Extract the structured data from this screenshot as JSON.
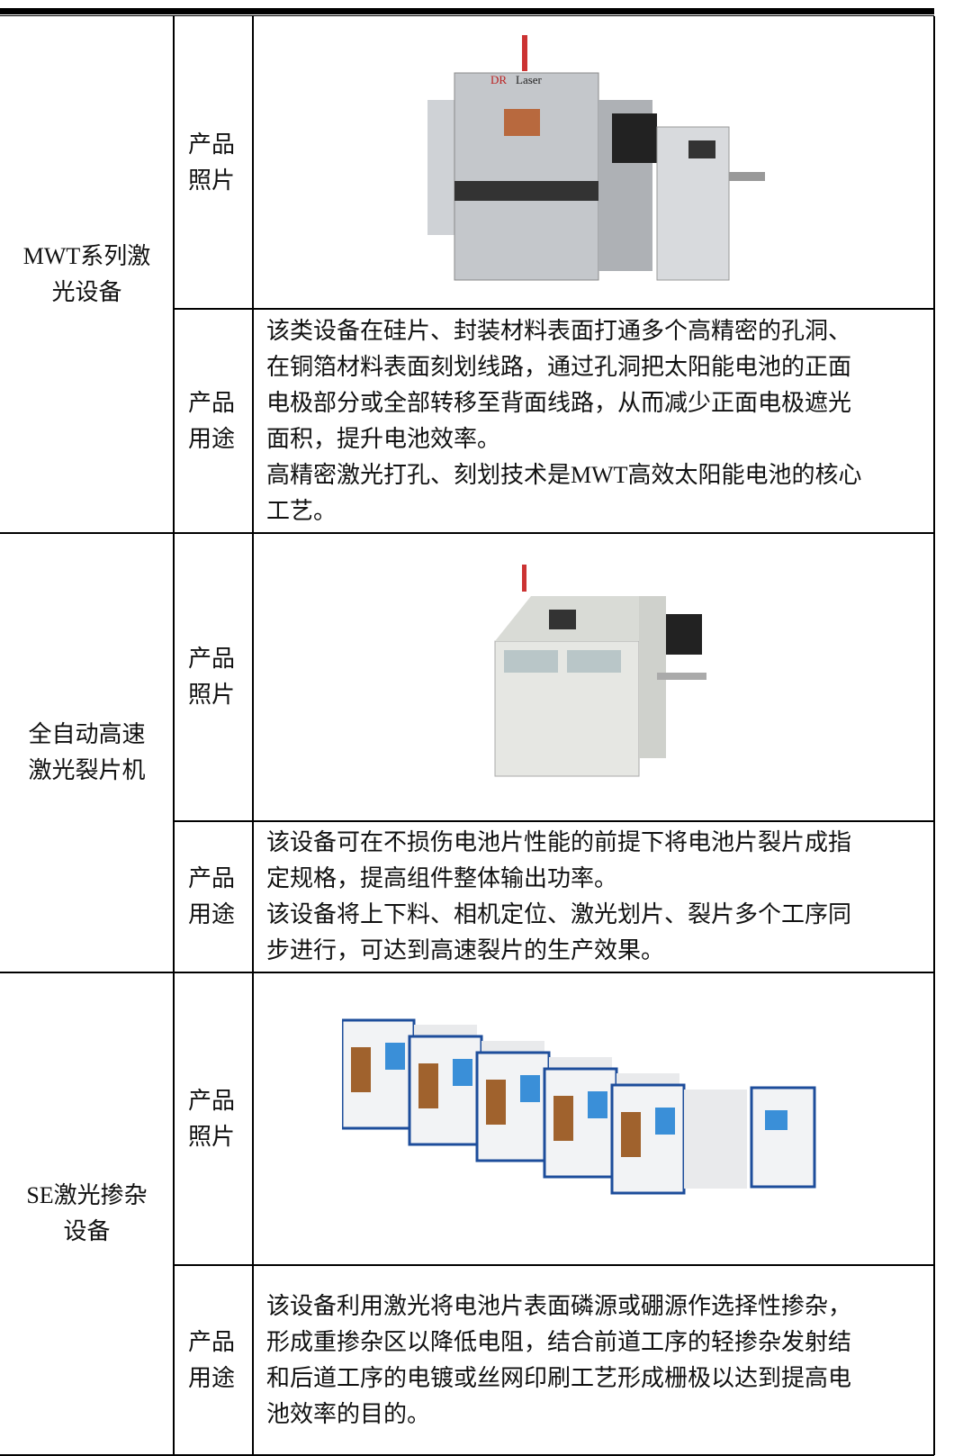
{
  "table": {
    "rows": [
      {
        "name": [
          "MWT系列激",
          "光设备"
        ],
        "photo_label": "产品照片",
        "usage_label": "产品用途",
        "usage": [
          "该类设备在硅片、封装材料表面打通多个高精密的孔洞、",
          "在铜箔材料表面刻划线路，通过孔洞把太阳能电池的正面",
          "电极部分或全部转移至背面线路，从而减少正面电极遮光",
          "面积，提升电池效率。",
          "高精密激光打孔、刻划技术是MWT高效太阳能电池的核心",
          "工艺。"
        ]
      },
      {
        "name": [
          "全自动高速",
          "激光裂片机"
        ],
        "photo_label": "产品照片",
        "usage_label": "产品用途",
        "usage": [
          "该设备可在不损伤电池片性能的前提下将电池片裂片成指",
          "定规格，提高组件整体输出功率。",
          "该设备将上下料、相机定位、激光划片、裂片多个工序同",
          "步进行，可达到高速裂片的生产效果。"
        ]
      },
      {
        "name": [
          "SE激光掺杂",
          "设备"
        ],
        "photo_label": "产品照片",
        "usage_label": "产品用途",
        "usage": [
          "该设备利用激光将电池片表面磷源或硼源作选择性掺杂，",
          "形成重掺杂区以降低电阻，结合前道工序的轻掺杂发射结",
          "和后道工序的电镀或丝网印刷工艺形成栅极以达到提高电",
          "池效率的目的。"
        ]
      }
    ]
  }
}
